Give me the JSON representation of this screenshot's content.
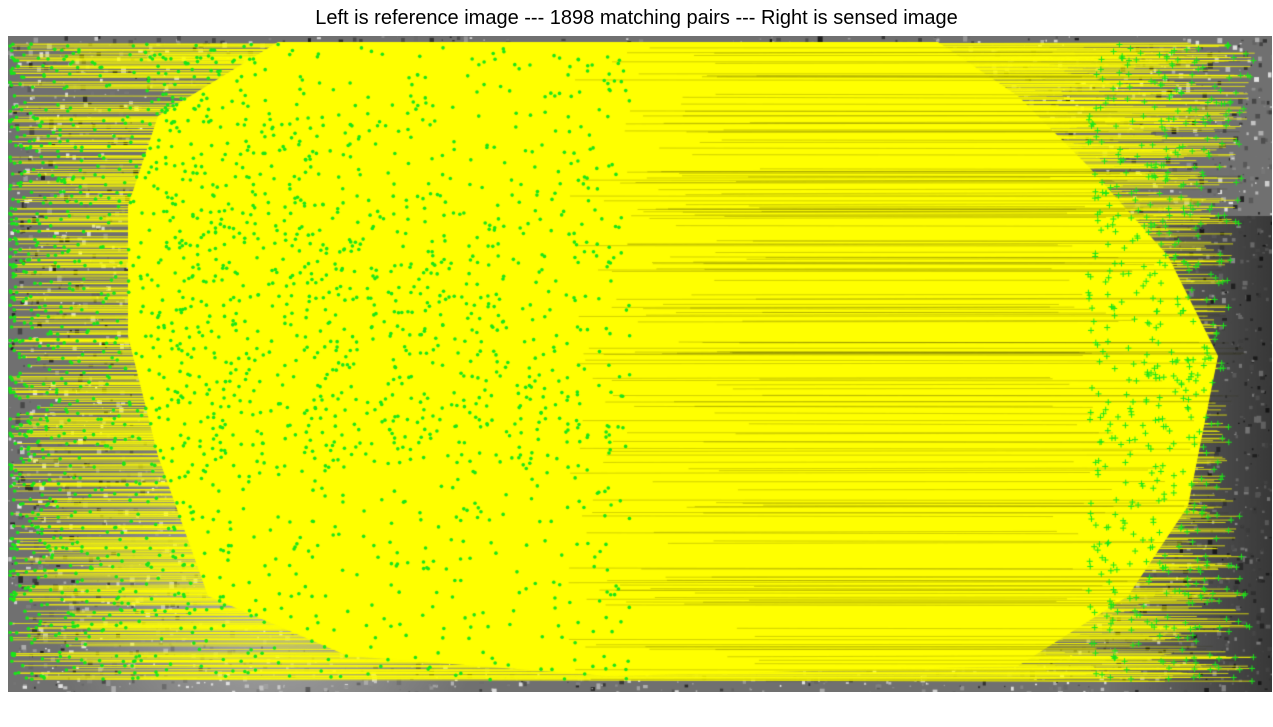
{
  "figure": {
    "title": "Left is reference image --- 1898 matching pairs --- Right is sensed image"
  },
  "matches": {
    "pair_count": 1898,
    "line_color": "#ffff00",
    "reference_marker": "green-dot",
    "sensed_marker": "green-plus",
    "marker_color": "#00ff00"
  },
  "imagery": {
    "type": "grayscale satellite images shown side by side",
    "left": "reference image",
    "right": "sensed image"
  }
}
